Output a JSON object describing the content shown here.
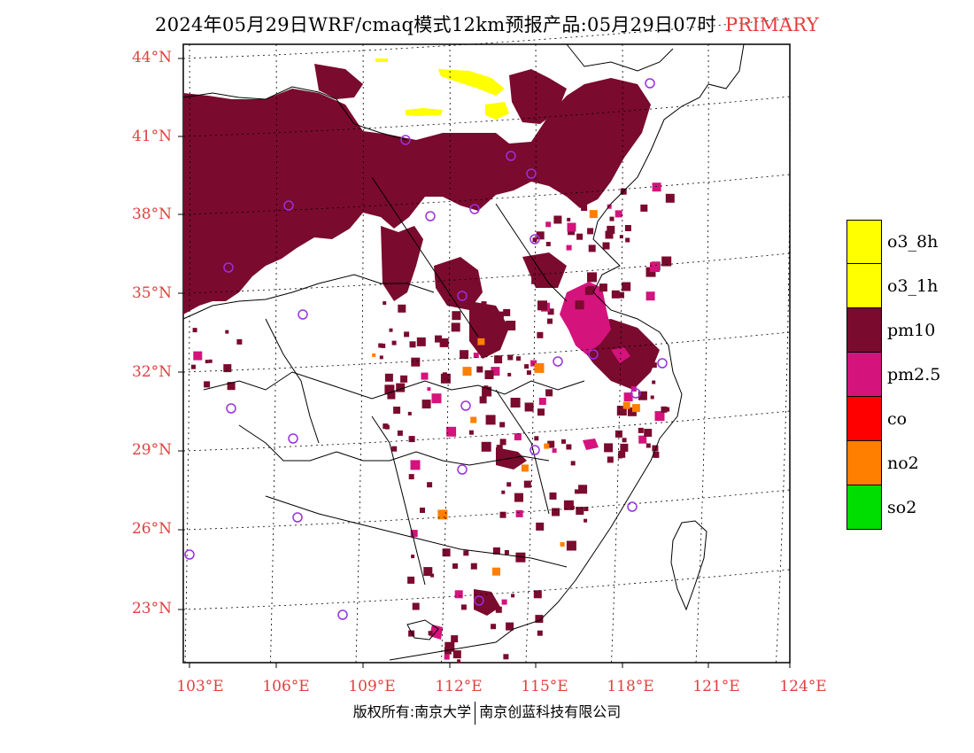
{
  "title": {
    "main": "2024年05月29日WRF/cmaq模式12km预报产品:05月29日07时",
    "tag": "PRIMARY"
  },
  "axes": {
    "lat_labels": [
      "44°N",
      "41°N",
      "38°N",
      "35°N",
      "32°N",
      "29°N",
      "26°N",
      "23°N"
    ],
    "lon_labels": [
      "103°E",
      "106°E",
      "109°E",
      "112°E",
      "115°E",
      "118°E",
      "121°E",
      "124°E"
    ]
  },
  "legend": [
    {
      "label": "o3_8h",
      "color": "#ffff00"
    },
    {
      "label": "o3_1h",
      "color": "#ffff00"
    },
    {
      "label": "pm10",
      "color": "#7a0a2e"
    },
    {
      "label": "pm2.5",
      "color": "#d4137c"
    },
    {
      "label": "co",
      "color": "#ff0000"
    },
    {
      "label": "no2",
      "color": "#ff7f00"
    },
    {
      "label": "so2",
      "color": "#00dd00"
    }
  ],
  "colors": {
    "pm10": "#7a0a2e",
    "pm25": "#d4137c",
    "o3": "#ffff00",
    "no2": "#ff7f00",
    "station": "#9a30e0",
    "axis_label": "#e04040"
  },
  "footer": {
    "left": "版权所有:南京大学",
    "right": "南京创蓝科技有限公司"
  }
}
